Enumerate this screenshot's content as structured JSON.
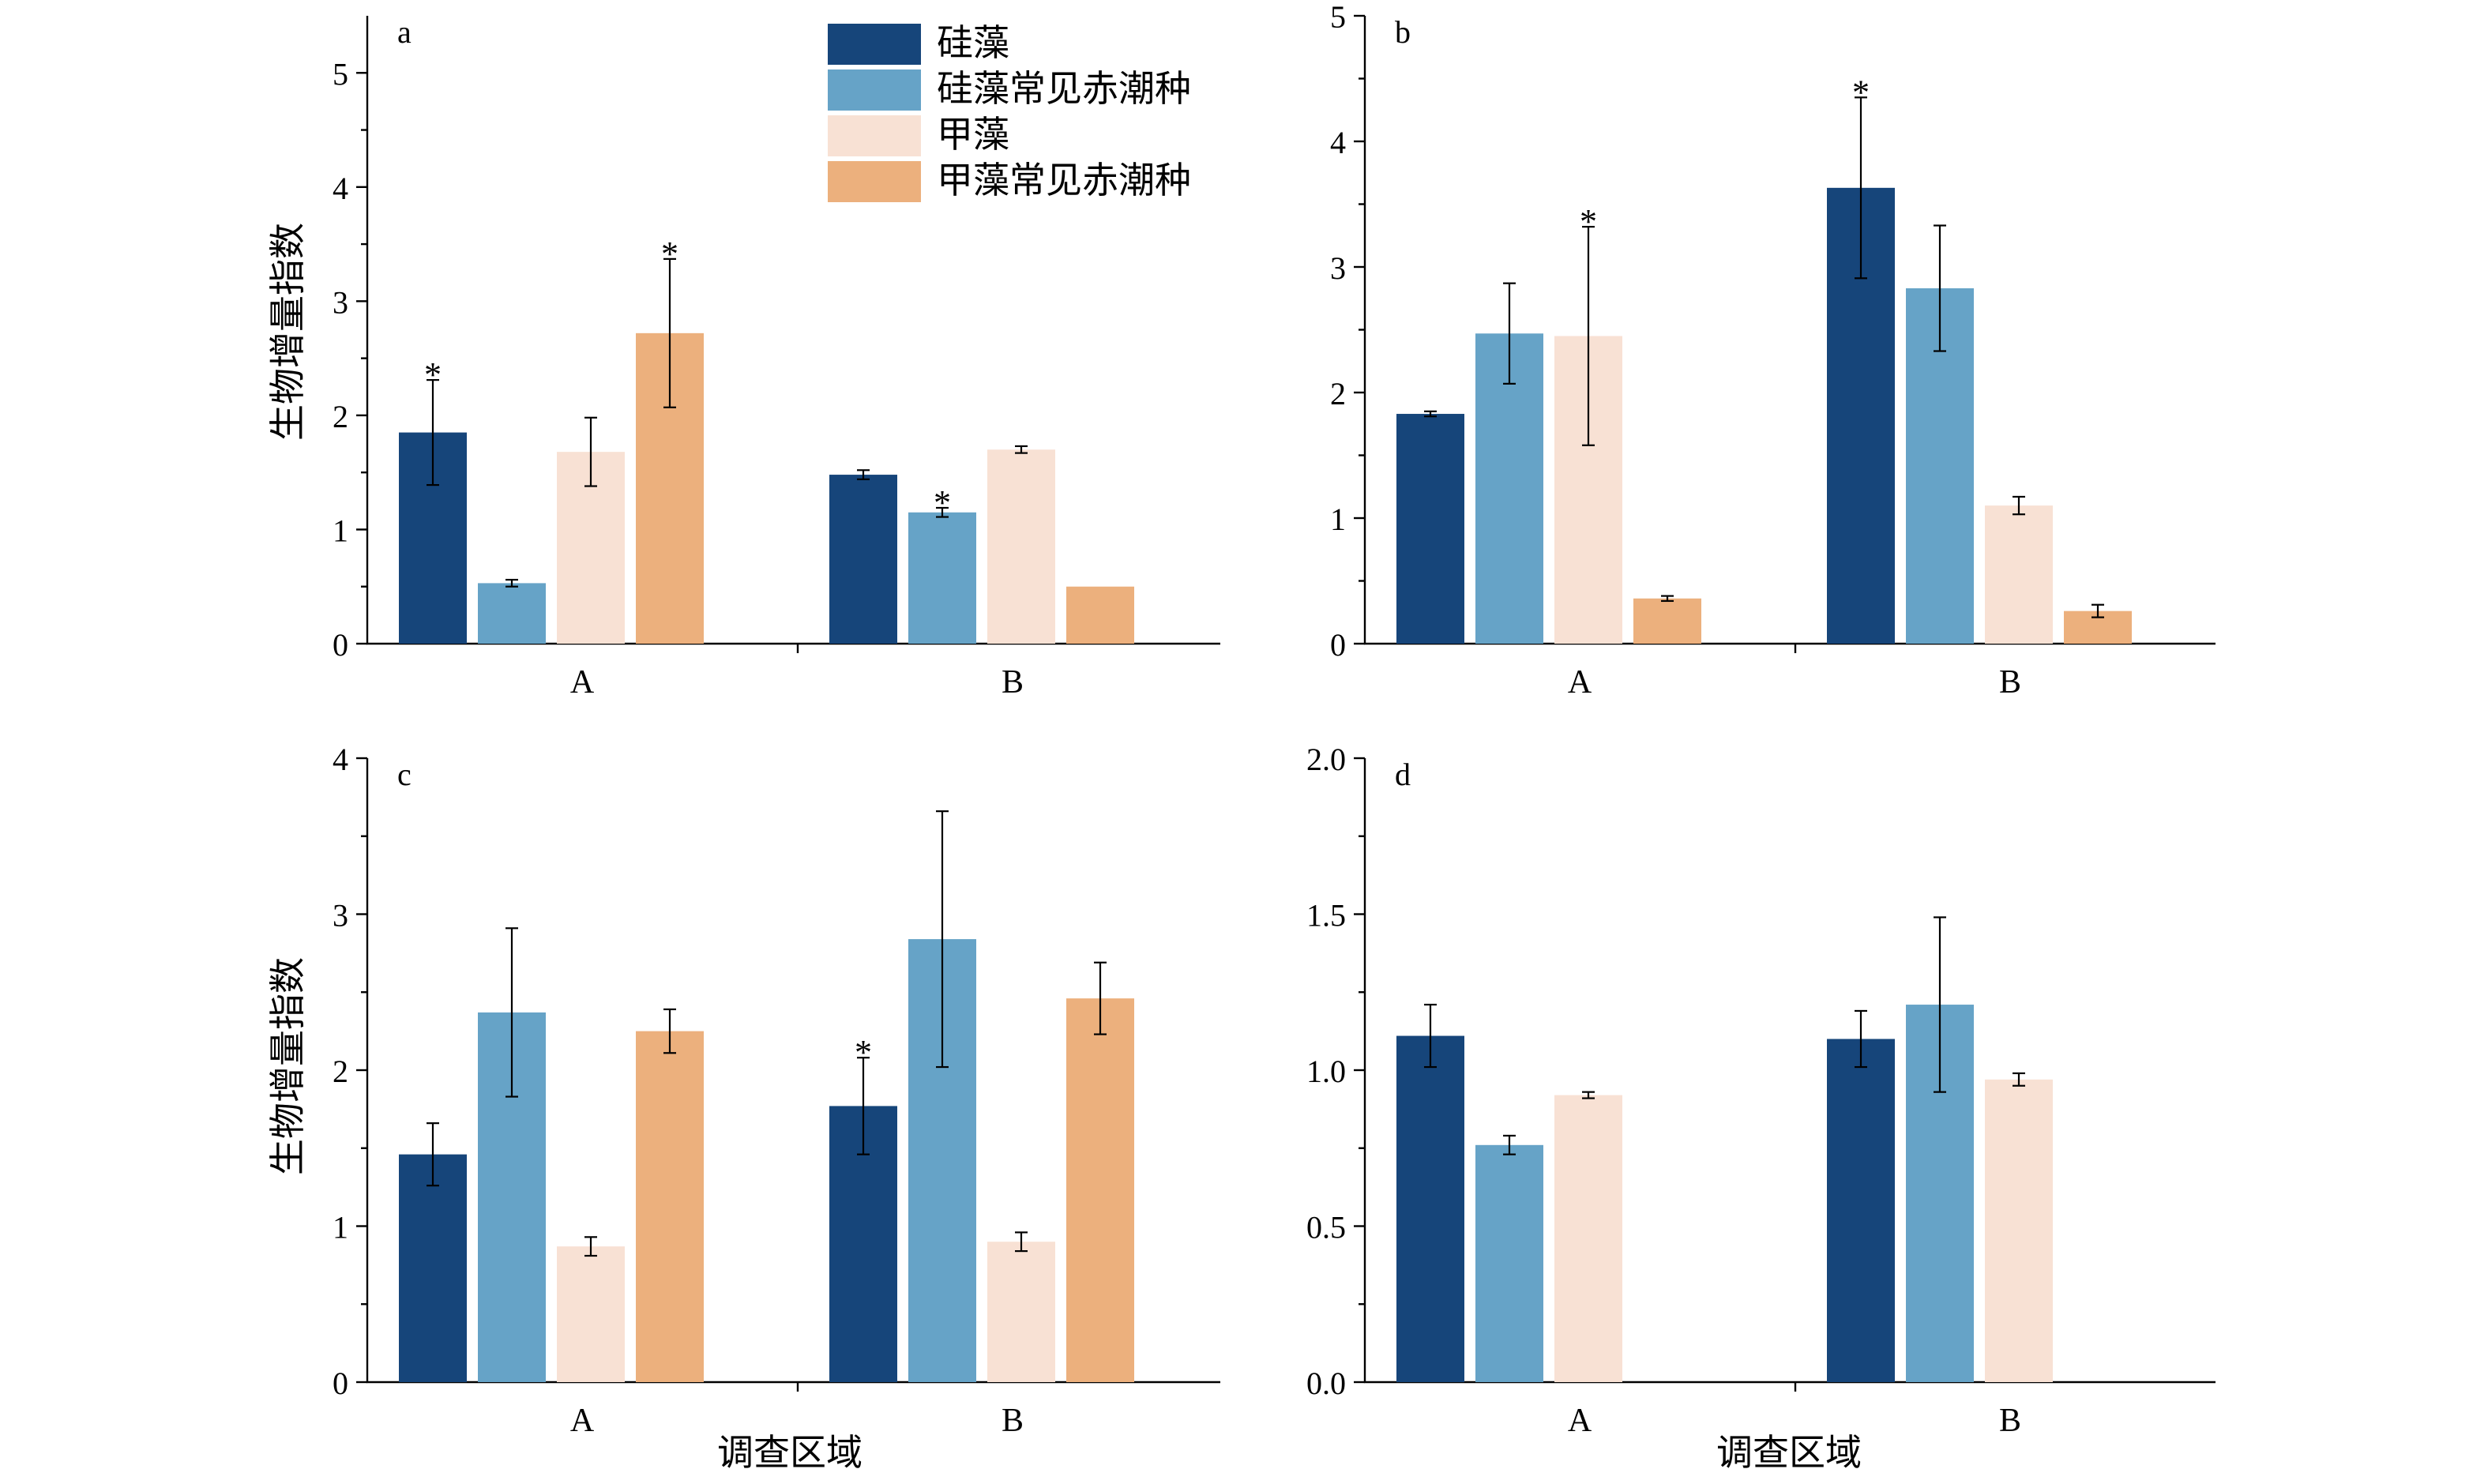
{
  "legend": {
    "items": [
      {
        "label": "硅藻",
        "color": "#16457a"
      },
      {
        "label": "硅藻常见赤潮种",
        "color": "#66a3c7"
      },
      {
        "label": "甲藻",
        "color": "#f8e1d4"
      },
      {
        "label": "甲藻常见赤潮种",
        "color": "#ecb07d"
      }
    ]
  },
  "ylabel_top": "生物增量指数",
  "ylabel_bottom": "生物增量指数",
  "xlabel_left": "调查区域",
  "xlabel_right": "调查区域",
  "significance_marker": "*",
  "chart_data": [
    {
      "type": "bar",
      "panel_label": "a",
      "categories": [
        "A",
        "B"
      ],
      "ylim": [
        0,
        5.5
      ],
      "yticks": [
        "0",
        "1",
        "2",
        "3",
        "4",
        "5"
      ],
      "series": [
        {
          "name": "硅藻",
          "values": [
            1.85,
            1.48
          ],
          "errors": [
            0.46,
            0.04
          ],
          "significant": [
            true,
            false
          ]
        },
        {
          "name": "硅藻常见赤潮种",
          "values": [
            0.53,
            1.15
          ],
          "errors": [
            0.03,
            0.04
          ],
          "significant": [
            false,
            true
          ]
        },
        {
          "name": "甲藻",
          "values": [
            1.68,
            1.7
          ],
          "errors": [
            0.3,
            0.03
          ],
          "significant": [
            false,
            false
          ]
        },
        {
          "name": "甲藻常见赤潮种",
          "values": [
            2.72,
            0.5
          ],
          "errors": [
            0.65,
            0.0
          ],
          "significant": [
            true,
            false
          ]
        }
      ]
    },
    {
      "type": "bar",
      "panel_label": "b",
      "categories": [
        "A",
        "B"
      ],
      "ylim": [
        0,
        5
      ],
      "yticks": [
        "0",
        "1",
        "2",
        "3",
        "4",
        "5"
      ],
      "series": [
        {
          "name": "硅藻",
          "values": [
            1.83,
            3.63
          ],
          "errors": [
            0.02,
            0.72
          ],
          "significant": [
            false,
            true
          ]
        },
        {
          "name": "硅藻常见赤潮种",
          "values": [
            2.47,
            2.83
          ],
          "errors": [
            0.4,
            0.5
          ],
          "significant": [
            false,
            false
          ]
        },
        {
          "name": "甲藻",
          "values": [
            2.45,
            1.1
          ],
          "errors": [
            0.87,
            0.07
          ],
          "significant": [
            true,
            false
          ]
        },
        {
          "name": "甲藻常见赤潮种",
          "values": [
            0.36,
            0.26
          ],
          "errors": [
            0.02,
            0.05
          ],
          "significant": [
            false,
            false
          ]
        }
      ]
    },
    {
      "type": "bar",
      "panel_label": "c",
      "categories": [
        "A",
        "B"
      ],
      "ylim": [
        0,
        4
      ],
      "yticks": [
        "0",
        "1",
        "2",
        "3",
        "4"
      ],
      "series": [
        {
          "name": "硅藻",
          "values": [
            1.46,
            1.77
          ],
          "errors": [
            0.2,
            0.31
          ],
          "significant": [
            false,
            true
          ]
        },
        {
          "name": "硅藻常见赤潮种",
          "values": [
            2.37,
            2.84
          ],
          "errors": [
            0.54,
            0.82
          ],
          "significant": [
            false,
            false
          ]
        },
        {
          "name": "甲藻",
          "values": [
            0.87,
            0.9
          ],
          "errors": [
            0.06,
            0.06
          ],
          "significant": [
            false,
            false
          ]
        },
        {
          "name": "甲藻常见赤潮种",
          "values": [
            2.25,
            2.46
          ],
          "errors": [
            0.14,
            0.23
          ],
          "significant": [
            false,
            false
          ]
        }
      ]
    },
    {
      "type": "bar",
      "panel_label": "d",
      "categories": [
        "A",
        "B"
      ],
      "ylim": [
        0,
        2.0
      ],
      "yticks": [
        "0.0",
        "0.5",
        "1.0",
        "1.5",
        "2.0"
      ],
      "series": [
        {
          "name": "硅藻",
          "values": [
            1.11,
            1.1
          ],
          "errors": [
            0.1,
            0.09
          ],
          "significant": [
            false,
            false
          ]
        },
        {
          "name": "硅藻常见赤潮种",
          "values": [
            0.76,
            1.21
          ],
          "errors": [
            0.03,
            0.28
          ],
          "significant": [
            false,
            false
          ]
        },
        {
          "name": "甲藻",
          "values": [
            0.92,
            0.97
          ],
          "errors": [
            0.01,
            0.02
          ],
          "significant": [
            false,
            false
          ]
        }
      ]
    }
  ]
}
